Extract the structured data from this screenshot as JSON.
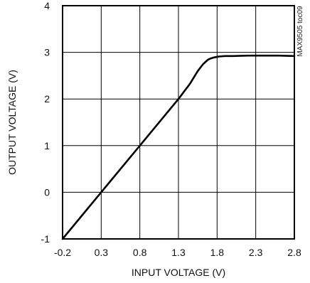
{
  "chart_data": {
    "type": "line",
    "title": "",
    "xlabel": "INPUT VOLTAGE (V)",
    "ylabel": "OUTPUT VOLTAGE (V)",
    "xlim": [
      -0.2,
      2.8
    ],
    "ylim": [
      -1,
      4
    ],
    "x_ticks": [
      "-0.2",
      "0.3",
      "0.8",
      "1.3",
      "1.8",
      "2.3",
      "2.8"
    ],
    "y_ticks": [
      "-1",
      "0",
      "1",
      "2",
      "3",
      "4"
    ],
    "grid": true,
    "side_label": "MAX9505 toc09",
    "series": [
      {
        "x": [
          -0.2,
          0.3,
          0.8,
          1.3,
          1.45,
          1.55,
          1.62,
          1.68,
          1.72,
          1.76,
          1.82,
          1.9,
          2.0,
          2.2,
          2.4,
          2.6,
          2.8
        ],
        "y": [
          -1.0,
          0.0,
          1.0,
          2.0,
          2.33,
          2.6,
          2.75,
          2.84,
          2.87,
          2.89,
          2.91,
          2.92,
          2.92,
          2.93,
          2.93,
          2.93,
          2.92
        ]
      }
    ]
  }
}
